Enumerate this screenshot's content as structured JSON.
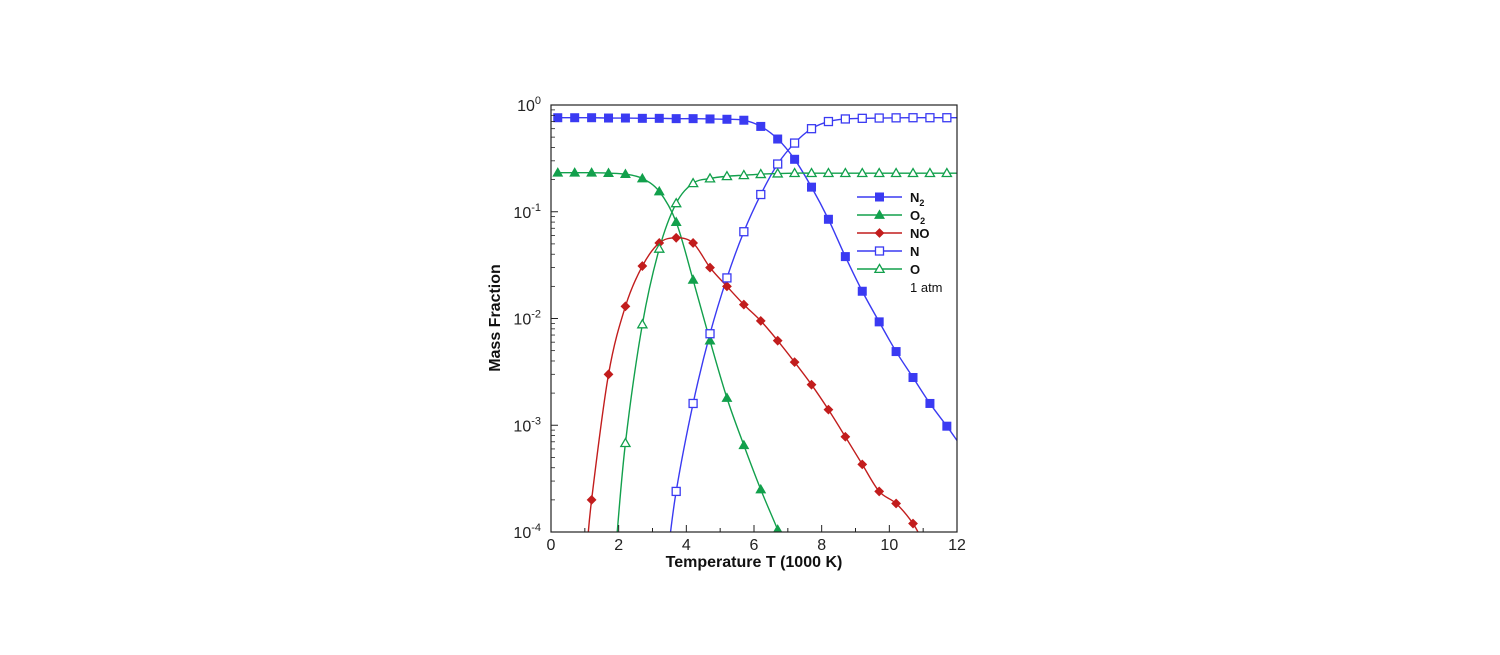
{
  "chart_data": {
    "type": "line",
    "title": "",
    "xlabel": "Temperature T (1000 K)",
    "ylabel": "Mass Fraction",
    "xlim": [
      0,
      12
    ],
    "ylim": [
      0.0001,
      1
    ],
    "y_scale": "log",
    "x_ticks": [
      "0",
      "2",
      "4",
      "6",
      "8",
      "10",
      "12"
    ],
    "y_ticks": [
      {
        "base": "10",
        "exp": "-4",
        "value": 0.0001
      },
      {
        "base": "10",
        "exp": "-3",
        "value": 0.001
      },
      {
        "base": "10",
        "exp": "-2",
        "value": 0.01
      },
      {
        "base": "10",
        "exp": "-1",
        "value": 0.1
      },
      {
        "base": "10",
        "exp": "0",
        "value": 1
      }
    ],
    "grid": false,
    "legend_position": "right",
    "annotation": "1 atm",
    "series": [
      {
        "name": "N",
        "sub": "2",
        "color": "#3a3af2",
        "marker": "square",
        "filled": true,
        "x": [
          0.2,
          0.7,
          1.2,
          1.7,
          2.2,
          2.7,
          3.2,
          3.7,
          4.2,
          4.7,
          5.2,
          5.7,
          6.2,
          6.7,
          7.2,
          7.7,
          8.2,
          8.7,
          9.2,
          9.7,
          10.2,
          10.7,
          11.2,
          11.7
        ],
        "y": [
          0.76,
          0.76,
          0.76,
          0.755,
          0.755,
          0.75,
          0.75,
          0.745,
          0.745,
          0.74,
          0.735,
          0.72,
          0.63,
          0.48,
          0.31,
          0.17,
          0.085,
          0.038,
          0.018,
          0.0093,
          0.0049,
          0.0028,
          0.0016,
          0.00098
        ]
      },
      {
        "name": "O",
        "sub": "2",
        "color": "#12a04c",
        "marker": "triangle",
        "filled": true,
        "x": [
          0.2,
          0.7,
          1.2,
          1.7,
          2.2,
          2.7,
          3.2,
          3.7,
          4.2,
          4.7,
          5.2,
          5.7,
          6.2,
          6.7
        ],
        "y": [
          0.232,
          0.232,
          0.232,
          0.23,
          0.225,
          0.205,
          0.155,
          0.08,
          0.023,
          0.0062,
          0.0018,
          0.00065,
          0.00025,
          0.000105
        ]
      },
      {
        "name": "NO",
        "sub": "",
        "color": "#c21d1d",
        "marker": "diamond",
        "filled": true,
        "x": [
          1.2,
          1.7,
          2.2,
          2.7,
          3.2,
          3.7,
          4.2,
          4.7,
          5.2,
          5.7,
          6.2,
          6.7,
          7.2,
          7.7,
          8.2,
          8.7,
          9.2,
          9.7,
          10.2,
          10.7
        ],
        "y": [
          0.0002,
          0.003,
          0.013,
          0.031,
          0.051,
          0.057,
          0.051,
          0.03,
          0.02,
          0.0135,
          0.0095,
          0.0062,
          0.0039,
          0.0024,
          0.0014,
          0.00078,
          0.00043,
          0.00024,
          0.000185,
          0.00012
        ]
      },
      {
        "name": "N",
        "sub": "",
        "color": "#3a3af2",
        "marker": "square",
        "filled": false,
        "x": [
          3.7,
          4.2,
          4.7,
          5.2,
          5.7,
          6.2,
          6.7,
          7.2,
          7.7,
          8.2,
          8.7,
          9.2,
          9.7,
          10.2,
          10.7,
          11.2,
          11.7
        ],
        "y": [
          0.00024,
          0.0016,
          0.0072,
          0.024,
          0.065,
          0.145,
          0.28,
          0.44,
          0.6,
          0.7,
          0.74,
          0.75,
          0.755,
          0.758,
          0.76,
          0.76,
          0.76
        ]
      },
      {
        "name": "O",
        "sub": "",
        "color": "#12a04c",
        "marker": "triangle",
        "filled": false,
        "x": [
          2.2,
          2.7,
          3.2,
          3.7,
          4.2,
          4.7,
          5.2,
          5.7,
          6.2,
          6.7,
          7.2,
          7.7,
          8.2,
          8.7,
          9.2,
          9.7,
          10.2,
          10.7,
          11.2,
          11.7
        ],
        "y": [
          0.00068,
          0.0088,
          0.045,
          0.12,
          0.185,
          0.205,
          0.215,
          0.22,
          0.225,
          0.228,
          0.23,
          0.23,
          0.23,
          0.23,
          0.23,
          0.23,
          0.23,
          0.23,
          0.23,
          0.23
        ]
      }
    ]
  }
}
